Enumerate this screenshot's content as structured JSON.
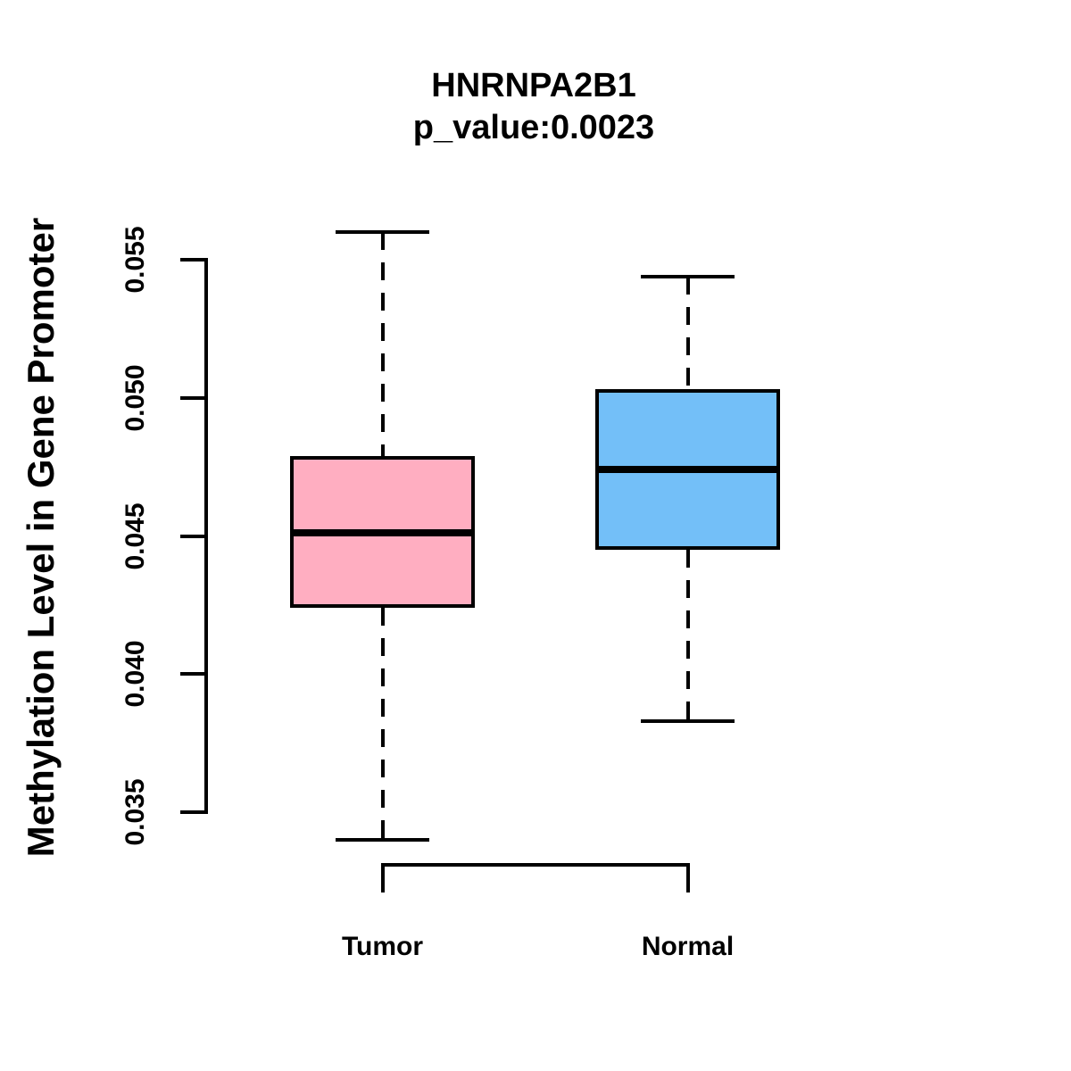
{
  "title": {
    "line1": "HNRNPA2B1",
    "line2": "p_value:0.0023"
  },
  "y_axis": {
    "label": "Methylation Level in Gene Promoter",
    "tick_labels": [
      "0.055",
      "0.050",
      "0.045",
      "0.040",
      "0.035"
    ]
  },
  "x_axis": {
    "categories": [
      "Tumor",
      "Normal"
    ]
  },
  "colors": {
    "tumor_fill": "#FFAEC1",
    "normal_fill": "#73BFF8",
    "line": "#000000",
    "background": "#FFFFFF"
  },
  "chart_data": {
    "type": "boxplot",
    "title": "HNRNPA2B1",
    "subtitle": "p_value:0.0023",
    "ylabel": "Methylation Level in Gene Promoter",
    "xlabel": "",
    "categories": [
      "Tumor",
      "Normal"
    ],
    "ylim": [
      0.0335,
      0.0565
    ],
    "y_ticks": [
      0.055,
      0.05,
      0.045,
      0.04,
      0.035
    ],
    "grid": false,
    "legend": false,
    "series": [
      {
        "name": "Tumor",
        "fill_color": "#FFAEC1",
        "whisker_low": 0.034,
        "q1": 0.0424,
        "median": 0.0451,
        "q3": 0.0479,
        "whisker_high": 0.056
      },
      {
        "name": "Normal",
        "fill_color": "#73BFF8",
        "whisker_low": 0.0383,
        "q1": 0.0445,
        "median": 0.0474,
        "q3": 0.0503,
        "whisker_high": 0.0544
      }
    ]
  }
}
